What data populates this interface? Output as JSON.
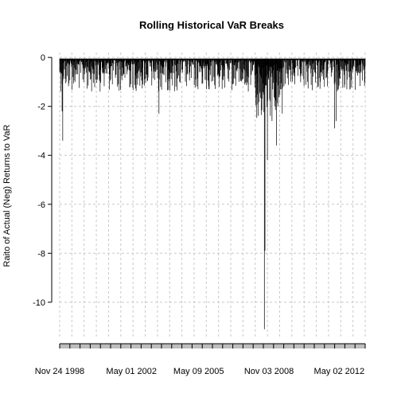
{
  "chart_data": {
    "type": "bar",
    "title": "Rolling Historical VaR Breaks",
    "ylabel": "Raito of Actual (Neg) Returns to VaR",
    "xlabel": "",
    "ylim": [
      -11.5,
      0.2
    ],
    "xlim": [
      0,
      1000
    ],
    "grid": true,
    "y_ticks": [
      0,
      -2,
      -4,
      -6,
      -8,
      -10
    ],
    "x_tick_labels": [
      {
        "label": "Nov 24 1998",
        "x": 0
      },
      {
        "label": "May 01 2002",
        "x": 235
      },
      {
        "label": "May 09 2005",
        "x": 455
      },
      {
        "label": "Nov 03 2008",
        "x": 685
      },
      {
        "label": "May 02 2012",
        "x": 915
      }
    ],
    "x_grid": [
      0,
      40,
      80,
      120,
      160,
      200,
      240,
      280,
      320,
      360,
      400,
      440,
      480,
      520,
      560,
      600,
      640,
      680,
      720,
      760,
      800,
      840,
      880,
      920,
      960,
      1000
    ],
    "x_minor_ticks": 30,
    "notable_values": [
      {
        "x": 10,
        "y": -3.4
      },
      {
        "x": 8,
        "y": -2.2
      },
      {
        "x": 325,
        "y": -2.3
      },
      {
        "x": 670,
        "y": -11.1
      },
      {
        "x": 672,
        "y": -7.9
      },
      {
        "x": 680,
        "y": -4.2
      },
      {
        "x": 695,
        "y": -2.6
      },
      {
        "x": 710,
        "y": -3.6
      },
      {
        "x": 900,
        "y": -2.9
      },
      {
        "x": 905,
        "y": -2.6
      }
    ],
    "series": [
      {
        "values": "dense daily breaks mostly between -0.1 and -1.5"
      }
    ]
  }
}
